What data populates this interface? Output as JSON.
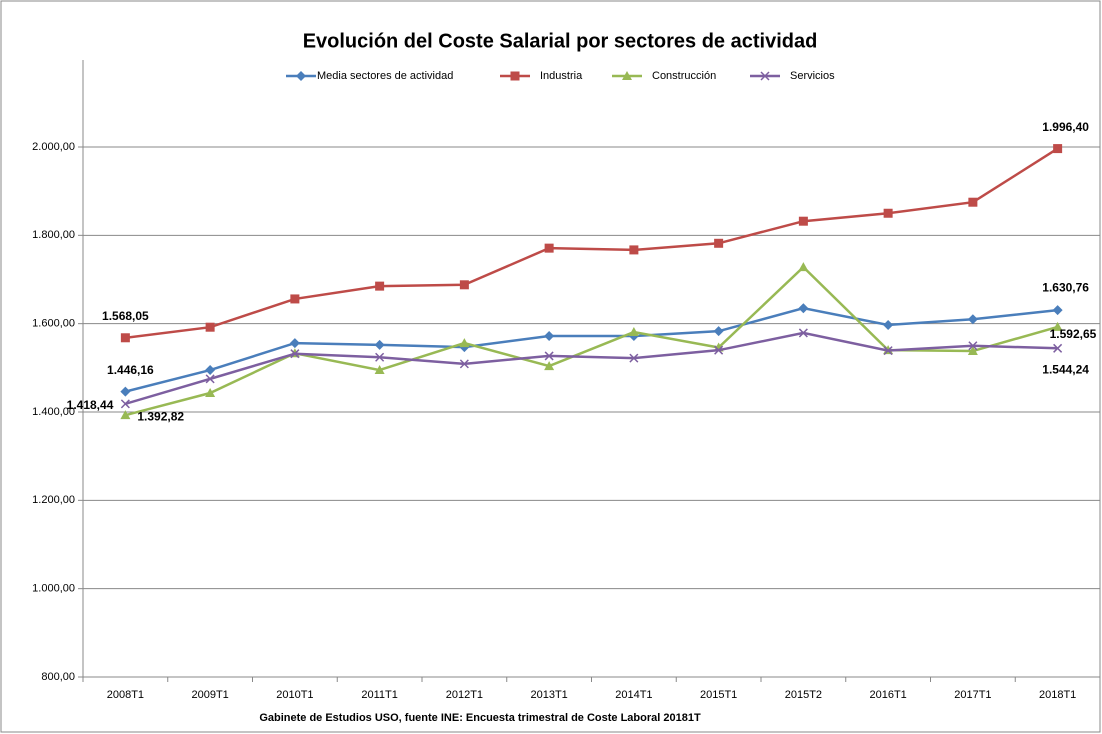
{
  "chart_data": {
    "type": "line",
    "title": "Evolución del Coste Salarial  por sectores de actividad",
    "x_label": "Gabinete de  Estudios USO, fuente INE: Encuesta trimestral de Coste Laboral  20181T",
    "categories": [
      "2008T1",
      "2009T1",
      "2010T1",
      "2011T1",
      "2012T1",
      "2013T1",
      "2014T1",
      "2015T1",
      "2015T2",
      "2016T1",
      "2017T1",
      "2018T1"
    ],
    "series": [
      {
        "name": "Media sectores de actividad",
        "color": "#4a7ebb",
        "marker": "diamond",
        "values": [
          1446.16,
          1495,
          1556,
          1552,
          1547,
          1572,
          1572,
          1583,
          1635,
          1597,
          1610,
          1630.76
        ],
        "value_labels": [
          "1.446,16",
          null,
          null,
          null,
          null,
          null,
          null,
          null,
          null,
          null,
          null,
          "1.630,76"
        ]
      },
      {
        "name": "Industria",
        "color": "#be4b48",
        "marker": "square",
        "values": [
          1568.05,
          1592,
          1656,
          1685,
          1688,
          1771,
          1767,
          1782,
          1832,
          1850,
          1875,
          1996.4
        ],
        "value_labels": [
          "1.568,05",
          null,
          null,
          null,
          null,
          null,
          null,
          null,
          null,
          null,
          null,
          "1.996,40"
        ]
      },
      {
        "name": "Construcción",
        "color": "#98b954",
        "marker": "triangle",
        "values": [
          1392.82,
          1443,
          1533,
          1495,
          1556,
          1504,
          1581,
          1546,
          1728,
          1540,
          1538,
          1592.65
        ],
        "value_labels": [
          "1.392,82",
          null,
          null,
          null,
          null,
          null,
          null,
          null,
          null,
          null,
          null,
          "1.592,65"
        ]
      },
      {
        "name": "Servicios",
        "color": "#7d5fa0",
        "marker": "x",
        "values": [
          1418.44,
          1475,
          1532,
          1524,
          1509,
          1527,
          1522,
          1540,
          1579,
          1539,
          1550,
          1544.24
        ],
        "value_labels": [
          "1.418,44",
          null,
          null,
          null,
          null,
          null,
          null,
          null,
          null,
          null,
          null,
          "1.544,24"
        ]
      }
    ],
    "ylim": [
      800,
      2000
    ],
    "yticks": [
      {
        "value": 800,
        "label": "800,00"
      },
      {
        "value": 1000,
        "label": "1.000,00"
      },
      {
        "value": 1200,
        "label": "1.200,00"
      },
      {
        "value": 1400,
        "label": "1.400,00"
      },
      {
        "value": 1600,
        "label": "1.600,00"
      },
      {
        "value": 1800,
        "label": "1.800,00"
      },
      {
        "value": 2000,
        "label": "2.000,00"
      }
    ],
    "grid": true,
    "legend": "top"
  }
}
